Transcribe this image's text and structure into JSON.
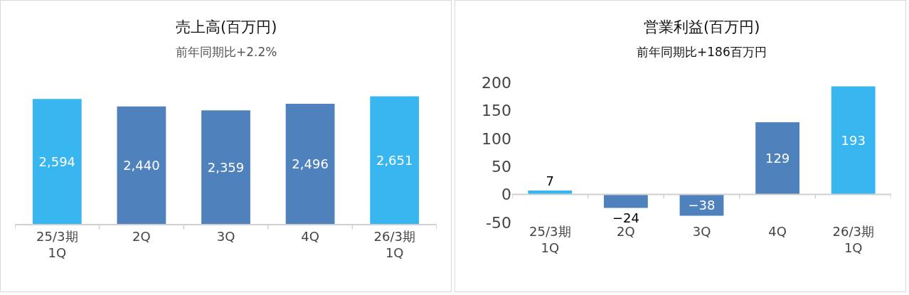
{
  "chart_data": [
    {
      "type": "bar",
      "title": "売上高(百万円)",
      "subtitle": "前年同期比+2.2%",
      "categories": [
        "25/3期\n1Q",
        "2Q",
        "3Q",
        "4Q",
        "26/3期\n1Q"
      ],
      "values": [
        2594,
        2440,
        2359,
        2496,
        2651
      ],
      "value_labels": [
        "2,594",
        "2,440",
        "2,359",
        "2,496",
        "2,651"
      ],
      "colors": [
        "#38b6f0",
        "#4f81bd",
        "#4f81bd",
        "#4f81bd",
        "#38b6f0"
      ],
      "tick_labels": "x",
      "grid": false
    },
    {
      "type": "bar",
      "title": "営業利益(百万円)",
      "subtitle": "前年同期比+186百万円",
      "categories": [
        "25/3期\n1Q",
        "2Q",
        "3Q",
        "4Q",
        "26/3期\n1Q"
      ],
      "values": [
        7,
        -24,
        -38,
        129,
        193
      ],
      "colors": [
        "#38b6f0",
        "#4f81bd",
        "#4f81bd",
        "#4f81bd",
        "#38b6f0"
      ],
      "ylim": [
        -50,
        200
      ],
      "yticks": [
        -50,
        0,
        50,
        100,
        150,
        200
      ],
      "data_labels": true,
      "grid": false
    }
  ]
}
